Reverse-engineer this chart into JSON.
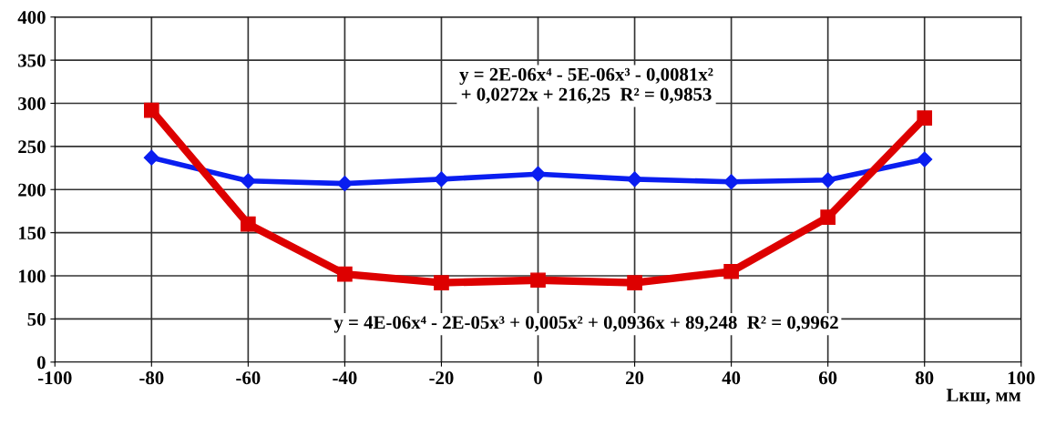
{
  "chart_data": {
    "type": "line",
    "xlabel": "Lкш, мм",
    "x": [
      -80,
      -60,
      -40,
      -20,
      0,
      20,
      40,
      60,
      80
    ],
    "series": [
      {
        "color": "#0a1ef0",
        "marker": "diamond",
        "values": [
          237,
          210,
          207,
          212,
          218,
          212,
          209,
          211,
          235
        ]
      },
      {
        "color": "#dd0000",
        "marker": "square",
        "values": [
          292,
          160,
          102,
          92,
          95,
          92,
          105,
          168,
          283
        ]
      }
    ],
    "xlim": [
      -100,
      100
    ],
    "xticks": [
      -100,
      -80,
      -60,
      -40,
      -20,
      0,
      20,
      40,
      60,
      80,
      100
    ],
    "ylim": [
      0,
      400
    ],
    "yticks": [
      0,
      50,
      100,
      150,
      200,
      250,
      300,
      350,
      400
    ],
    "grid": true,
    "line_style": "solid",
    "annotations": [
      "y = 2E-06x⁴ - 5E-06x³ - 0,0081x²\n+ 0,0272x + 216,25  R² = 0,9853",
      "y = 4E-06x⁴ - 2E-05x³ + 0,005x² + 0,0936x + 89,248  R² = 0,9962"
    ]
  }
}
